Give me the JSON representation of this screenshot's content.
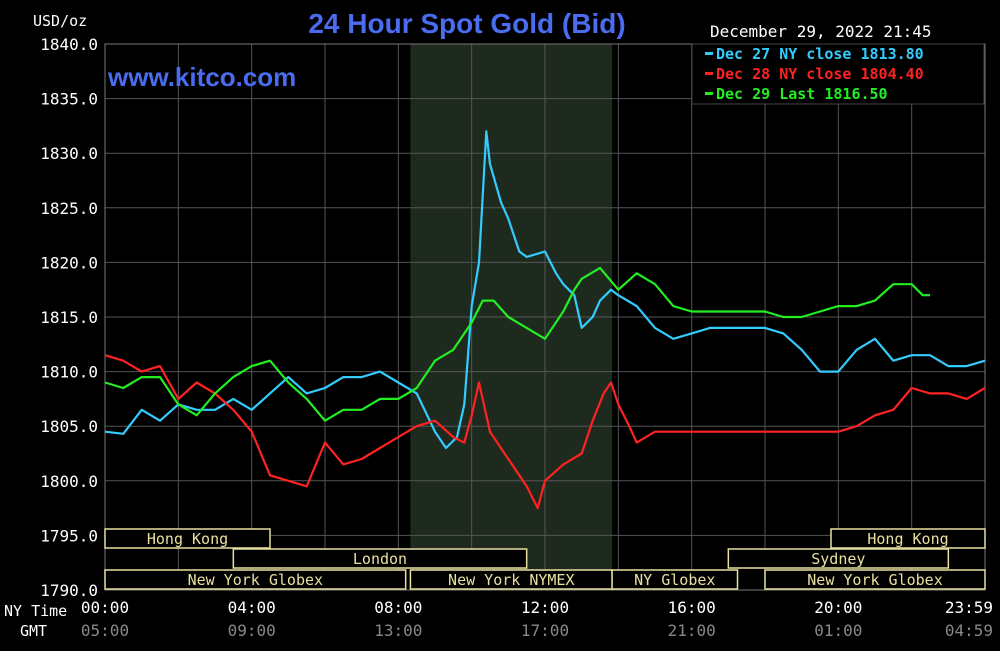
{
  "chart_data": {
    "type": "line",
    "title": "24 Hour Spot Gold (Bid)",
    "ylabel": "USD/oz",
    "timestamp": "December 29, 2022 21:45",
    "watermark": "www.kitco.com",
    "ylim": [
      1790,
      1840
    ],
    "y_ticks": [
      "1840.0",
      "1835.0",
      "1830.0",
      "1825.0",
      "1820.0",
      "1815.0",
      "1810.0",
      "1805.0",
      "1800.0",
      "1795.0",
      "1790.0"
    ],
    "xlim_hours": [
      0,
      24
    ],
    "x_ticks_ny": [
      "00:00",
      "04:00",
      "08:00",
      "12:00",
      "16:00",
      "20:00",
      "23:59"
    ],
    "x_ticks_gmt": [
      "05:00",
      "09:00",
      "13:00",
      "17:00",
      "21:00",
      "01:00",
      "04:59"
    ],
    "x_axis_ny_label": "NY Time",
    "x_axis_gmt_label": "GMT",
    "shaded_region_hours": [
      8.33,
      13.83
    ],
    "sessions": [
      {
        "label": "Hong Kong",
        "start": 0,
        "end": 4.5,
        "row": 0
      },
      {
        "label": "Hong Kong",
        "start": 19.8,
        "end": 24,
        "row": 0
      },
      {
        "label": "London",
        "start": 3.5,
        "end": 11.5,
        "row": 1
      },
      {
        "label": "Sydney",
        "start": 17.0,
        "end": 23.0,
        "row": 1
      },
      {
        "label": "New York Globex",
        "start": 0,
        "end": 8.2,
        "row": 2
      },
      {
        "label": "New York NYMEX",
        "start": 8.33,
        "end": 13.83,
        "row": 2
      },
      {
        "label": "NY Globex",
        "start": 13.83,
        "end": 17.25,
        "row": 2
      },
      {
        "label": "New York Globex",
        "start": 18.0,
        "end": 24,
        "row": 2
      }
    ],
    "series": [
      {
        "name": "Dec 27 NY close 1813.80",
        "color": "#33ccff",
        "x": [
          0,
          0.5,
          1,
          1.5,
          2,
          2.5,
          3,
          3.5,
          4,
          4.5,
          5,
          5.5,
          6,
          6.5,
          7,
          7.5,
          8,
          8.5,
          9,
          9.3,
          9.6,
          9.8,
          10,
          10.2,
          10.4,
          10.5,
          10.8,
          11,
          11.3,
          11.5,
          12,
          12.3,
          12.5,
          12.8,
          13,
          13.3,
          13.5,
          13.8,
          14,
          14.5,
          15,
          15.5,
          16,
          16.5,
          17,
          17.5,
          18,
          18.5,
          19,
          19.5,
          20,
          20.5,
          21,
          21.5,
          22,
          22.5,
          23,
          23.5,
          24
        ],
        "y": [
          1804.5,
          1804.3,
          1806.5,
          1805.5,
          1807,
          1806.5,
          1806.5,
          1807.5,
          1806.5,
          1808,
          1809.5,
          1808,
          1808.5,
          1809.5,
          1809.5,
          1810,
          1809,
          1808,
          1804.5,
          1803,
          1804,
          1807,
          1816,
          1820,
          1832,
          1829,
          1825.5,
          1824,
          1821,
          1820.5,
          1821,
          1819,
          1818,
          1817,
          1814,
          1815,
          1816.5,
          1817.5,
          1817,
          1816,
          1814,
          1813,
          1813.5,
          1814,
          1814,
          1814,
          1814,
          1813.5,
          1812,
          1810,
          1810,
          1812,
          1813,
          1811,
          1811.5,
          1811.5,
          1810.5,
          1810.5,
          1811
        ]
      },
      {
        "name": "Dec 28 NY close 1804.40",
        "color": "#ff2222",
        "x": [
          0,
          0.5,
          1,
          1.5,
          2,
          2.5,
          3,
          3.5,
          4,
          4.5,
          5,
          5.5,
          6,
          6.5,
          7,
          7.5,
          8,
          8.5,
          9,
          9.5,
          9.8,
          10,
          10.2,
          10.5,
          11,
          11.5,
          11.8,
          12,
          12.5,
          13,
          13.3,
          13.6,
          13.8,
          14,
          14.3,
          14.5,
          15,
          15.5,
          16,
          16.5,
          17,
          17.5,
          18,
          18.5,
          19,
          19.5,
          20,
          20.5,
          21,
          21.5,
          22,
          22.5,
          23,
          23.5,
          24
        ],
        "y": [
          1811.5,
          1811,
          1810,
          1810.5,
          1807.5,
          1809,
          1808,
          1806.5,
          1804.5,
          1800.5,
          1800,
          1799.5,
          1803.5,
          1801.5,
          1802,
          1803,
          1804,
          1805,
          1805.5,
          1804,
          1803.5,
          1806,
          1809,
          1804.5,
          1802,
          1799.5,
          1797.5,
          1800,
          1801.5,
          1802.5,
          1805.5,
          1808,
          1809,
          1807,
          1805,
          1803.5,
          1804.5,
          1804.5,
          1804.5,
          1804.5,
          1804.5,
          1804.5,
          1804.5,
          1804.5,
          1804.5,
          1804.5,
          1804.5,
          1805,
          1806,
          1806.5,
          1808.5,
          1808,
          1808,
          1807.5,
          1808.5
        ]
      },
      {
        "name": "Dec 29 Last 1816.50",
        "color": "#22ee22",
        "x": [
          0,
          0.5,
          1,
          1.5,
          2,
          2.5,
          3,
          3.5,
          4,
          4.5,
          5,
          5.5,
          6,
          6.5,
          7,
          7.5,
          8,
          8.5,
          9,
          9.5,
          10,
          10.3,
          10.6,
          11,
          11.5,
          12,
          12.5,
          12.8,
          13,
          13.5,
          14,
          14.5,
          15,
          15.5,
          16,
          16.5,
          17,
          17.5,
          18,
          18.5,
          19,
          19.5,
          20,
          20.5,
          21,
          21.5,
          22,
          22.3,
          22.5
        ],
        "y": [
          1809,
          1808.5,
          1809.5,
          1809.5,
          1807,
          1806,
          1808,
          1809.5,
          1810.5,
          1811,
          1809,
          1807.5,
          1805.5,
          1806.5,
          1806.5,
          1807.5,
          1807.5,
          1808.5,
          1811,
          1812,
          1814.5,
          1816.5,
          1816.5,
          1815,
          1814,
          1813,
          1815.5,
          1817.5,
          1818.5,
          1819.5,
          1817.5,
          1819,
          1818,
          1816,
          1815.5,
          1815.5,
          1815.5,
          1815.5,
          1815.5,
          1815,
          1815,
          1815.5,
          1816,
          1816,
          1816.5,
          1818,
          1818,
          1817,
          1817
        ]
      }
    ]
  }
}
